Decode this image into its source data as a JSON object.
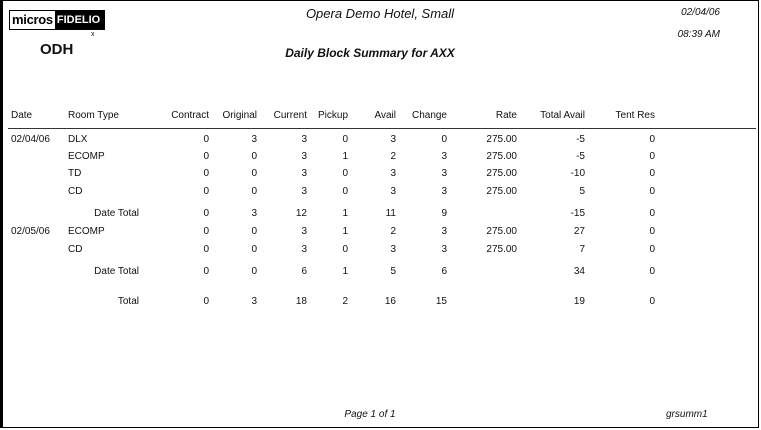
{
  "header": {
    "logo_left": "micros",
    "logo_right": "FIDELIO",
    "mark": "x",
    "property": "ODH",
    "hotel": "Opera Demo Hotel, Small",
    "title": "Daily Block Summary for AXX",
    "date": "02/04/06",
    "time": "08:39 AM"
  },
  "columns": [
    "Date",
    "Room Type",
    "Contract",
    "Original",
    "Current",
    "Pickup",
    "Avail",
    "Change",
    "Rate",
    "Total Avail",
    "Tent Res"
  ],
  "rows": [
    {
      "type": "data",
      "date": "02/04/06",
      "room": "DLX",
      "v": [
        "0",
        "3",
        "3",
        "0",
        "3",
        "0",
        "275.00",
        "-5",
        "0"
      ]
    },
    {
      "type": "data",
      "date": "",
      "room": "ECOMP",
      "v": [
        "0",
        "0",
        "3",
        "1",
        "2",
        "3",
        "275.00",
        "-5",
        "0"
      ]
    },
    {
      "type": "data",
      "date": "",
      "room": "TD",
      "v": [
        "0",
        "0",
        "3",
        "0",
        "3",
        "3",
        "275.00",
        "-10",
        "0"
      ]
    },
    {
      "type": "data",
      "date": "",
      "room": "CD",
      "v": [
        "0",
        "0",
        "3",
        "0",
        "3",
        "3",
        "275.00",
        "5",
        "0"
      ]
    },
    {
      "type": "datetotal",
      "label": "Date Total",
      "v": [
        "0",
        "3",
        "12",
        "1",
        "11",
        "9",
        "",
        "-15",
        "0"
      ]
    },
    {
      "type": "data",
      "date": "02/05/06",
      "room": "ECOMP",
      "v": [
        "0",
        "0",
        "3",
        "1",
        "2",
        "3",
        "275.00",
        "27",
        "0"
      ]
    },
    {
      "type": "data",
      "date": "",
      "room": "CD",
      "v": [
        "0",
        "0",
        "3",
        "0",
        "3",
        "3",
        "275.00",
        "7",
        "0"
      ]
    },
    {
      "type": "datetotal",
      "label": "Date Total",
      "v": [
        "0",
        "0",
        "6",
        "1",
        "5",
        "6",
        "",
        "34",
        "0"
      ]
    },
    {
      "type": "total",
      "label": "Total",
      "v": [
        "0",
        "3",
        "18",
        "2",
        "16",
        "15",
        "",
        "19",
        "0"
      ]
    }
  ],
  "footer": {
    "page": "Page 1 of 1",
    "report": "grsumm1"
  }
}
